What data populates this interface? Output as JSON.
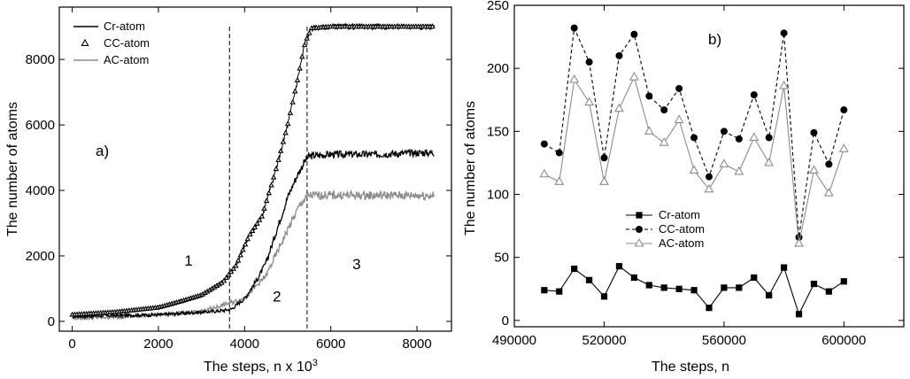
{
  "chart_data": [
    {
      "type": "line",
      "panel_label": "a)",
      "xlabel": "The steps, n x 10",
      "xlabel_exp": "3",
      "ylabel": "The number of atoms",
      "xlim": [
        -300,
        8800
      ],
      "ylim": [
        -300,
        9600
      ],
      "xticks": [
        0,
        2000,
        4000,
        6000,
        8000
      ],
      "yticks": [
        0,
        2000,
        4000,
        6000,
        8000
      ],
      "grid": false,
      "legend_position": "top-left",
      "region_markers": [
        3650,
        5450
      ],
      "region_labels": [
        {
          "text": "1",
          "x": 2700,
          "y": 1700
        },
        {
          "text": "2",
          "x": 4750,
          "y": 600
        },
        {
          "text": "3",
          "x": 6600,
          "y": 1600
        }
      ],
      "series": [
        {
          "name": "Cr-atom",
          "color": "#000000",
          "marker": "line",
          "x": [
            0,
            1000,
            2000,
            3000,
            3500,
            3700,
            4000,
            4300,
            4500,
            4800,
            5000,
            5200,
            5400,
            5500,
            6000,
            7000,
            8000,
            8400
          ],
          "y": [
            150,
            180,
            200,
            280,
            330,
            380,
            700,
            1300,
            1800,
            3000,
            3800,
            4400,
            4900,
            5050,
            5100,
            5100,
            5150,
            5150
          ]
        },
        {
          "name": "CC-atom",
          "color": "#000000",
          "marker": "triangle",
          "x": [
            0,
            1000,
            2000,
            2500,
            3000,
            3500,
            3800,
            4100,
            4400,
            4700,
            5000,
            5200,
            5400,
            5550,
            6000,
            7000,
            8000,
            8400
          ],
          "y": [
            200,
            280,
            420,
            600,
            800,
            1200,
            1700,
            2600,
            3200,
            4500,
            6000,
            7200,
            8500,
            8950,
            9000,
            9000,
            9000,
            9000
          ]
        },
        {
          "name": "AC-atom",
          "color": "#8c8c8c",
          "marker": "line",
          "x": [
            0,
            1000,
            2000,
            3000,
            3500,
            4000,
            4500,
            5000,
            5300,
            5500,
            6000,
            7000,
            8000,
            8400
          ],
          "y": [
            100,
            130,
            200,
            300,
            500,
            700,
            1400,
            2800,
            3600,
            3850,
            3850,
            3850,
            3850,
            3850
          ]
        }
      ]
    },
    {
      "type": "line",
      "panel_label": "b)",
      "xlabel": "The steps, n",
      "ylabel": "The number of atoms",
      "xlim": [
        490000,
        620000
      ],
      "ylim": [
        -5,
        250
      ],
      "xticks": [
        490000,
        520000,
        560000,
        600000
      ],
      "yticks": [
        0,
        50,
        100,
        150,
        200,
        250
      ],
      "grid": false,
      "legend_position": "center",
      "x": [
        500000,
        505000,
        510000,
        515000,
        520000,
        525000,
        530000,
        535000,
        540000,
        545000,
        550000,
        555000,
        560000,
        565000,
        570000,
        575000,
        580000,
        585000,
        590000,
        595000,
        600000
      ],
      "series": [
        {
          "name": "Cr-atom",
          "color": "#000000",
          "marker": "square",
          "line": "solid",
          "values": [
            24,
            23,
            41,
            32,
            19,
            43,
            34,
            28,
            26,
            25,
            24,
            10,
            26,
            26,
            34,
            20,
            42,
            5,
            29,
            23,
            31
          ]
        },
        {
          "name": "CC-atom",
          "color": "#000000",
          "marker": "circle",
          "line": "dashed",
          "values": [
            140,
            133,
            232,
            205,
            129,
            210,
            227,
            178,
            167,
            184,
            145,
            114,
            150,
            144,
            179,
            145,
            228,
            66,
            149,
            124,
            167
          ]
        },
        {
          "name": "AC-atom",
          "color": "#8c8c8c",
          "marker": "triangle",
          "line": "solid",
          "values": [
            116,
            110,
            191,
            173,
            110,
            168,
            193,
            150,
            141,
            159,
            119,
            104,
            124,
            118,
            145,
            125,
            186,
            61,
            119,
            101,
            136
          ]
        }
      ]
    }
  ]
}
